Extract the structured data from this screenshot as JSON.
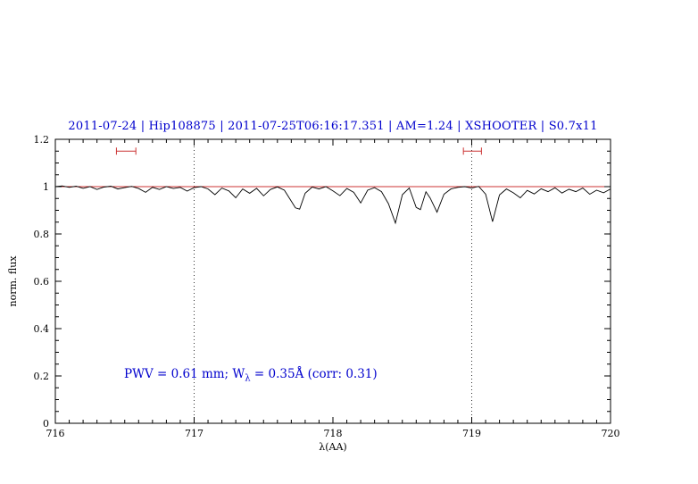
{
  "header": {
    "title": "2011-07-24 | Hip108875 | 2011-07-25T06:16:17.351 | AM=1.24 | XSHOOTER | S0.7x11",
    "color": "#0000cd"
  },
  "annotation": {
    "prefix": "PWV = 0.61 mm; W",
    "sub": "λ",
    "suffix": " = 0.35Å (corr: 0.31)",
    "color": "#0000cd"
  },
  "chart_data": {
    "type": "line",
    "title": "2011-07-24 | Hip108875 | 2011-07-25T06:16:17.351 | AM=1.24 | XSHOOTER | S0.7x11",
    "xlabel": "λ(AA)",
    "ylabel": "norm. flux",
    "xlim": [
      716,
      720
    ],
    "ylim": [
      0,
      1.2
    ],
    "x_ticks": [
      "716",
      "717",
      "718",
      "719",
      "720"
    ],
    "y_ticks": [
      "0",
      "0.2",
      "0.4",
      "0.6",
      "0.8",
      "1",
      "1.2"
    ],
    "x_minor_step": 0.1,
    "y_minor_step": 0.05,
    "grid": false,
    "legend": false,
    "vlines": {
      "x": [
        717,
        719
      ],
      "style": "dotted",
      "color": "#333333"
    },
    "continuum": {
      "y": 1.0,
      "color": "#cc3333"
    },
    "range_markers": [
      {
        "x1": 716.44,
        "x2": 716.58,
        "y": 1.15,
        "color": "#cc3333"
      },
      {
        "x1": 718.94,
        "x2": 719.07,
        "y": 1.15,
        "color": "#cc3333"
      }
    ],
    "series": [
      {
        "name": "spectrum",
        "color": "#000000",
        "x": [
          716.0,
          716.05,
          716.1,
          716.15,
          716.2,
          716.25,
          716.3,
          716.35,
          716.4,
          716.45,
          716.5,
          716.55,
          716.6,
          716.65,
          716.7,
          716.75,
          716.8,
          716.85,
          716.9,
          716.95,
          717.0,
          717.05,
          717.1,
          717.15,
          717.2,
          717.25,
          717.3,
          717.35,
          717.4,
          717.45,
          717.5,
          717.55,
          717.6,
          717.65,
          717.7,
          717.73,
          717.76,
          717.8,
          717.85,
          717.9,
          717.95,
          718.0,
          718.05,
          718.1,
          718.15,
          718.2,
          718.25,
          718.3,
          718.35,
          718.4,
          718.45,
          718.5,
          718.55,
          718.6,
          718.63,
          718.67,
          718.7,
          718.75,
          718.8,
          718.85,
          718.9,
          718.95,
          719.0,
          719.05,
          719.1,
          719.15,
          719.2,
          719.25,
          719.3,
          719.35,
          719.4,
          719.45,
          719.5,
          719.55,
          719.6,
          719.65,
          719.7,
          719.75,
          719.8,
          719.85,
          719.9,
          719.95,
          720.0
        ],
        "y": [
          1.0,
          1.003,
          0.997,
          1.002,
          0.993,
          1.0,
          0.988,
          0.998,
          1.002,
          0.99,
          0.996,
          1.001,
          0.992,
          0.976,
          0.997,
          0.988,
          1.0,
          0.992,
          0.997,
          0.981,
          0.996,
          1.0,
          0.99,
          0.966,
          0.994,
          0.982,
          0.953,
          0.99,
          0.972,
          0.993,
          0.961,
          0.988,
          0.999,
          0.985,
          0.938,
          0.91,
          0.905,
          0.972,
          0.998,
          0.99,
          1.0,
          0.982,
          0.962,
          0.992,
          0.976,
          0.931,
          0.985,
          0.996,
          0.979,
          0.928,
          0.846,
          0.966,
          0.994,
          0.912,
          0.903,
          0.978,
          0.952,
          0.892,
          0.968,
          0.99,
          0.997,
          1.0,
          0.994,
          1.001,
          0.968,
          0.852,
          0.965,
          0.99,
          0.974,
          0.953,
          0.984,
          0.969,
          0.991,
          0.979,
          0.995,
          0.973,
          0.989,
          0.979,
          0.994,
          0.968,
          0.985,
          0.974,
          0.99
        ]
      }
    ]
  }
}
